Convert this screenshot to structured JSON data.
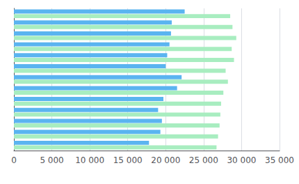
{
  "chart_data": {
    "type": "bar",
    "orientation": "horizontal",
    "categories": [
      null,
      null,
      null,
      null,
      null,
      null,
      null,
      null,
      null,
      null,
      null,
      null,
      null
    ],
    "series": [
      {
        "color": "#5ab4f0",
        "values": [
          22500,
          20800,
          20700,
          20500,
          20200,
          20000,
          22100,
          21500,
          19700,
          19000,
          19500,
          19300,
          17800
        ]
      },
      {
        "color": "#a8edc0",
        "values": [
          28500,
          28800,
          29300,
          28700,
          29000,
          27900,
          28200,
          27600,
          27300,
          27200,
          27100,
          26900,
          26700
        ]
      }
    ],
    "xlim": [
      0,
      35000
    ],
    "xticks": [
      0,
      {
        "value": 5000,
        "label": "5 000"
      },
      {
        "value": 10000,
        "label": "10 000"
      },
      {
        "value": 15000,
        "label": "15 000"
      },
      {
        "value": 20000,
        "label": "20 000"
      },
      {
        "value": 25000,
        "label": "25 000"
      },
      {
        "value": 30000,
        "label": "30 000"
      },
      {
        "value": 35000,
        "label": "35 000"
      }
    ],
    "grid": true,
    "tick_labels": "x"
  }
}
